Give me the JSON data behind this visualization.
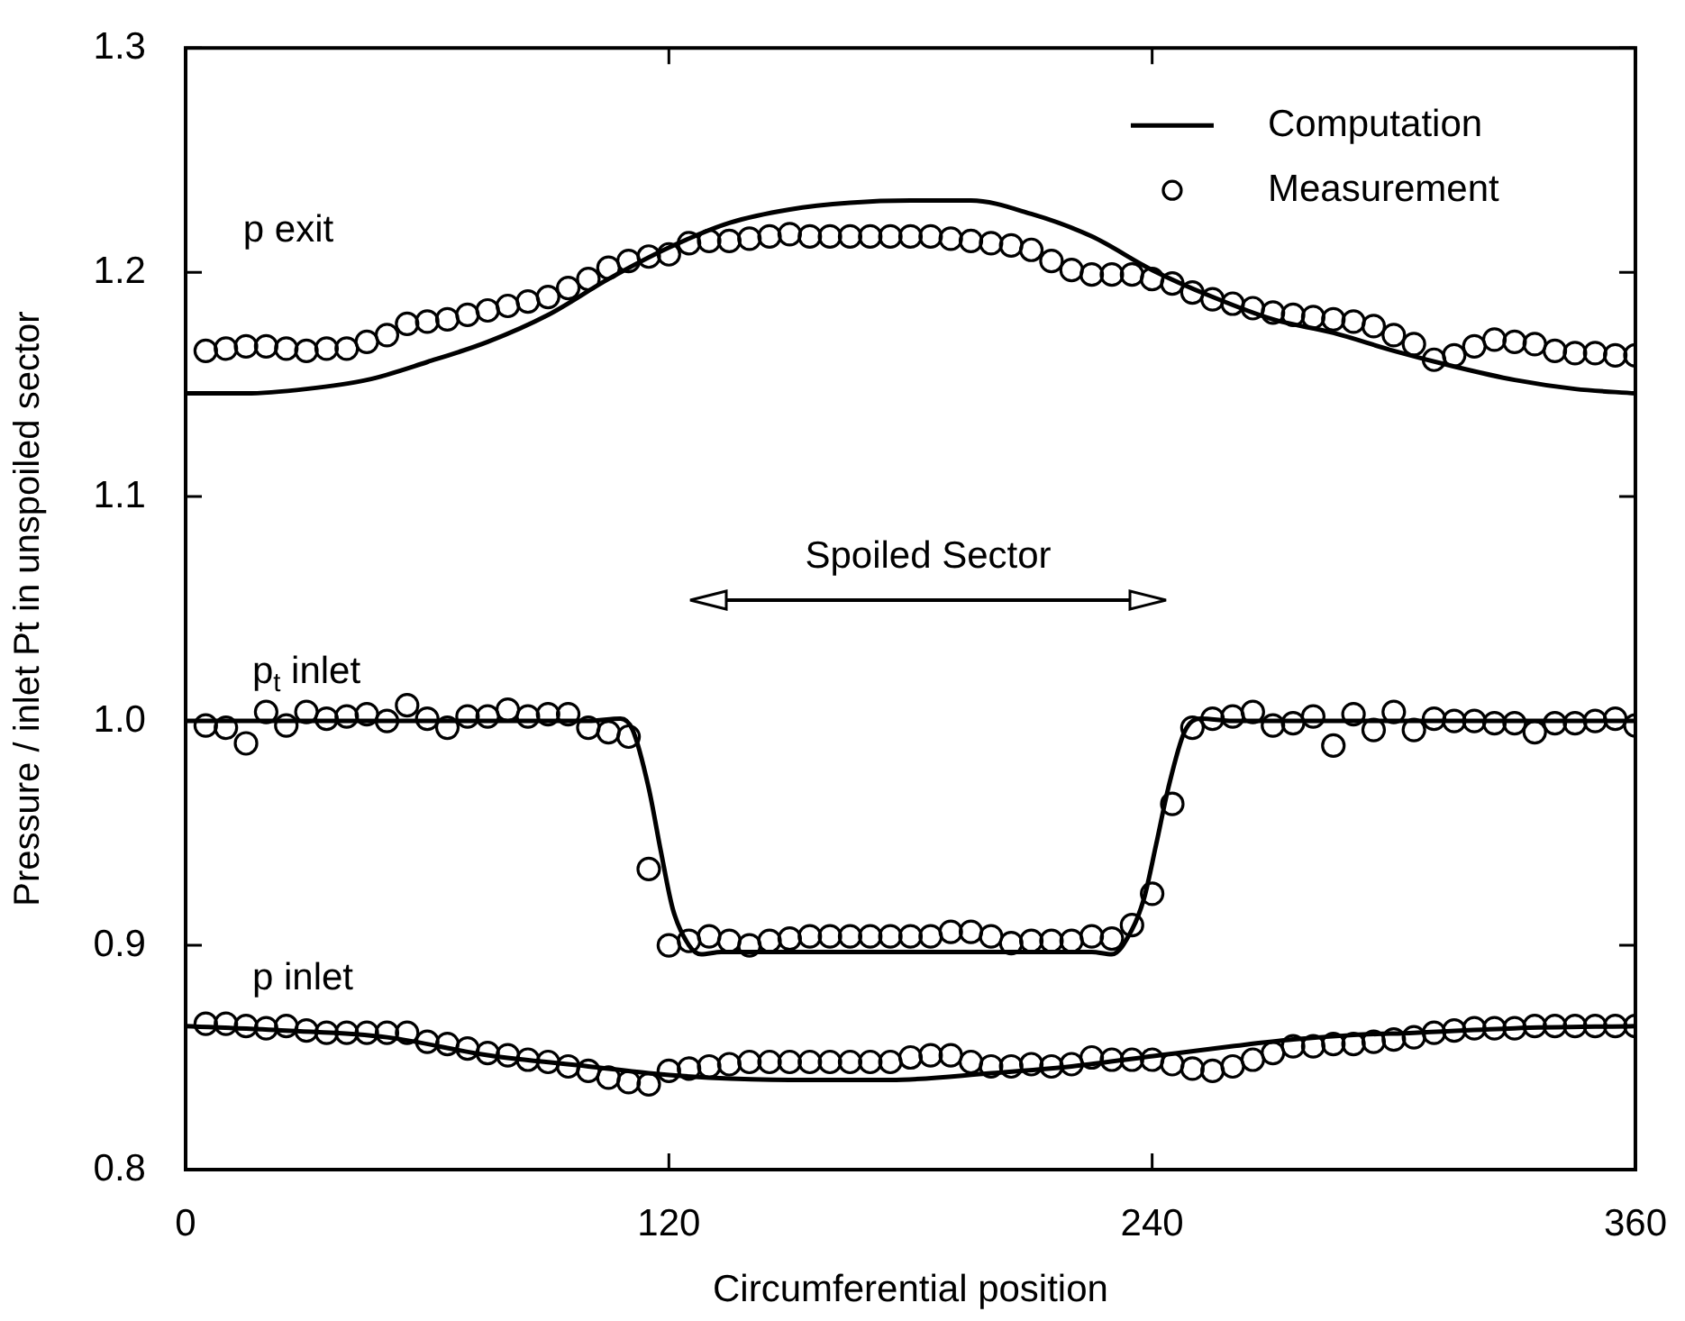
{
  "chart_data": {
    "type": "line",
    "xlabel": "Circumferential position",
    "ylabel": "Pressure / inlet Pt in unspoiled sector",
    "xlim": [
      0,
      360
    ],
    "xticks": [
      0,
      120,
      240,
      360
    ],
    "ylim": [
      0.8,
      1.3
    ],
    "yticks": [
      0.8,
      0.9,
      {
        "value": 1.0,
        "label": "1.0"
      },
      1.1,
      1.2,
      1.3
    ],
    "grid": false,
    "legend": "top right",
    "x": [
      5,
      10,
      15,
      20,
      25,
      30,
      35,
      40,
      45,
      50,
      55,
      60,
      65,
      70,
      75,
      80,
      85,
      90,
      95,
      100,
      105,
      110,
      115,
      120,
      125,
      130,
      135,
      140,
      145,
      150,
      155,
      160,
      165,
      170,
      175,
      180,
      185,
      190,
      195,
      200,
      205,
      210,
      215,
      220,
      225,
      230,
      235,
      240,
      245,
      250,
      255,
      260,
      265,
      270,
      275,
      280,
      285,
      290,
      295,
      300,
      305,
      310,
      315,
      320,
      325,
      330,
      335,
      340,
      345,
      350,
      355,
      360
    ],
    "series": [
      {
        "type": "line",
        "name": "Computation",
        "color": "#000000",
        "x": [
          0,
          15,
          30,
          45,
          60,
          75,
          90,
          105,
          120,
          135,
          150,
          165,
          180,
          195,
          210,
          225,
          240,
          255,
          270,
          285,
          300,
          315,
          330,
          345,
          360
        ],
        "values": [
          1.146,
          1.146,
          1.148,
          1.152,
          1.16,
          1.169,
          1.181,
          1.197,
          1.211,
          1.222,
          1.228,
          1.231,
          1.232,
          1.232,
          1.226,
          1.216,
          1.201,
          1.189,
          1.179,
          1.173,
          1.165,
          1.158,
          1.152,
          1.148,
          1.146
        ]
      },
      {
        "type": "line",
        "color": "#000000",
        "x": [
          0,
          20,
          40,
          60,
          80,
          100,
          108,
          111,
          115,
          118,
          121,
          125,
          128,
          133,
          150,
          180,
          210,
          225,
          230,
          235,
          238,
          241,
          244,
          248,
          252,
          260,
          300,
          360
        ],
        "values": [
          1.0,
          1.0,
          1.0,
          1.0,
          1.0,
          1.0,
          1.001,
          0.996,
          0.97,
          0.942,
          0.916,
          0.9,
          0.896,
          0.897,
          0.897,
          0.897,
          0.897,
          0.897,
          0.896,
          0.907,
          0.921,
          0.945,
          0.97,
          0.995,
          1.001,
          1.0,
          1.0,
          1.0
        ]
      },
      {
        "type": "line",
        "color": "#000000",
        "x": [
          0,
          25,
          50,
          75,
          100,
          115,
          130,
          150,
          175,
          200,
          220,
          242,
          260,
          275,
          290,
          305,
          330,
          360
        ],
        "values": [
          0.864,
          0.862,
          0.859,
          0.851,
          0.846,
          0.843,
          0.841,
          0.84,
          0.84,
          0.843,
          0.846,
          0.851,
          0.855,
          0.858,
          0.86,
          0.861,
          0.863,
          0.864
        ]
      },
      {
        "type": "scatter",
        "name": "Measurement",
        "color": "#000000",
        "marker": "circle",
        "values": [
          1.165,
          1.166,
          1.167,
          1.167,
          1.166,
          1.165,
          1.166,
          1.166,
          1.169,
          1.172,
          1.177,
          1.178,
          1.179,
          1.181,
          1.183,
          1.185,
          1.187,
          1.189,
          1.193,
          1.197,
          1.202,
          1.205,
          1.207,
          1.208,
          1.213,
          1.214,
          1.214,
          1.215,
          1.216,
          1.217,
          1.216,
          1.216,
          1.216,
          1.216,
          1.216,
          1.216,
          1.216,
          1.215,
          1.214,
          1.213,
          1.212,
          1.21,
          1.205,
          1.201,
          1.199,
          1.199,
          1.199,
          1.197,
          1.195,
          1.191,
          1.188,
          1.186,
          1.184,
          1.182,
          1.181,
          1.18,
          1.179,
          1.178,
          1.176,
          1.172,
          1.168,
          1.161,
          1.163,
          1.167,
          1.17,
          1.169,
          1.168,
          1.165,
          1.164,
          1.164,
          1.163,
          1.163
        ]
      },
      {
        "type": "scatter",
        "color": "#000000",
        "marker": "circle",
        "values": [
          0.998,
          0.997,
          0.99,
          1.004,
          0.998,
          1.004,
          1.001,
          1.002,
          1.003,
          1.0,
          1.007,
          1.001,
          0.997,
          1.002,
          1.002,
          1.005,
          1.002,
          1.003,
          1.003,
          0.997,
          0.995,
          0.993,
          0.934,
          0.9,
          0.902,
          0.904,
          0.902,
          0.9,
          0.902,
          0.903,
          0.904,
          0.904,
          0.904,
          0.904,
          0.904,
          0.904,
          0.904,
          0.906,
          0.906,
          0.904,
          0.901,
          0.902,
          0.902,
          0.902,
          0.904,
          0.903,
          0.909,
          0.923,
          0.963,
          0.997,
          1.001,
          1.002,
          1.004,
          0.998,
          0.999,
          1.002,
          0.989,
          1.003,
          0.996,
          1.004,
          0.996,
          1.001,
          1.0,
          1.0,
          0.999,
          0.999,
          0.995,
          0.999,
          0.999,
          1.0,
          1.001,
          0.998
        ]
      },
      {
        "type": "scatter",
        "color": "#000000",
        "marker": "circle",
        "values": [
          0.865,
          0.865,
          0.864,
          0.863,
          0.864,
          0.862,
          0.861,
          0.861,
          0.861,
          0.861,
          0.861,
          0.857,
          0.856,
          0.854,
          0.852,
          0.851,
          0.849,
          0.848,
          0.846,
          0.844,
          0.841,
          0.839,
          0.838,
          0.844,
          0.845,
          0.846,
          0.847,
          0.848,
          0.848,
          0.848,
          0.848,
          0.848,
          0.848,
          0.848,
          0.848,
          0.85,
          0.851,
          0.851,
          0.848,
          0.846,
          0.846,
          0.847,
          0.846,
          0.847,
          0.85,
          0.849,
          0.849,
          0.849,
          0.847,
          0.845,
          0.844,
          0.846,
          0.849,
          0.852,
          0.855,
          0.855,
          0.856,
          0.856,
          0.857,
          0.858,
          0.859,
          0.861,
          0.862,
          0.863,
          0.863,
          0.863,
          0.864,
          0.864,
          0.864,
          0.864,
          0.864,
          0.864
        ]
      }
    ],
    "annotations": [
      "p exit",
      "p$_{t}$ inlet",
      "p inlet",
      "Spoiled Sector"
    ]
  }
}
